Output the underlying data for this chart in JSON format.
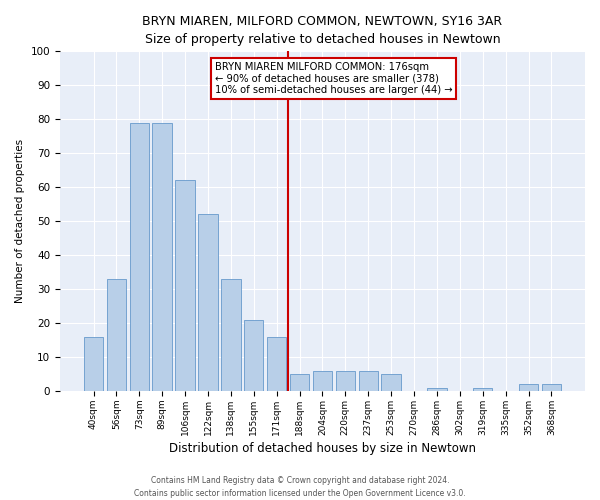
{
  "title": "BRYN MIAREN, MILFORD COMMON, NEWTOWN, SY16 3AR",
  "subtitle": "Size of property relative to detached houses in Newtown",
  "xlabel": "Distribution of detached houses by size in Newtown",
  "ylabel": "Number of detached properties",
  "categories": [
    "40sqm",
    "56sqm",
    "73sqm",
    "89sqm",
    "106sqm",
    "122sqm",
    "138sqm",
    "155sqm",
    "171sqm",
    "188sqm",
    "204sqm",
    "220sqm",
    "237sqm",
    "253sqm",
    "270sqm",
    "286sqm",
    "302sqm",
    "319sqm",
    "335sqm",
    "352sqm",
    "368sqm"
  ],
  "values": [
    16,
    33,
    79,
    79,
    62,
    52,
    33,
    21,
    16,
    5,
    6,
    6,
    6,
    5,
    0,
    1,
    0,
    1,
    0,
    2,
    2
  ],
  "bar_color": "#b8cfe8",
  "bar_edge_color": "#6699cc",
  "vline_x": 8.5,
  "vline_color": "#cc0000",
  "annotation_text": "BRYN MIAREN MILFORD COMMON: 176sqm\n← 90% of detached houses are smaller (378)\n10% of semi-detached houses are larger (44) →",
  "annotation_box_color": "#ffffff",
  "annotation_box_edge": "#cc0000",
  "ylim": [
    0,
    100
  ],
  "yticks": [
    0,
    10,
    20,
    30,
    40,
    50,
    60,
    70,
    80,
    90,
    100
  ],
  "plot_bg_color": "#e8eef8",
  "fig_bg_color": "#ffffff",
  "grid_color": "#ffffff",
  "footer_line1": "Contains HM Land Registry data © Crown copyright and database right 2024.",
  "footer_line2": "Contains public sector information licensed under the Open Government Licence v3.0."
}
